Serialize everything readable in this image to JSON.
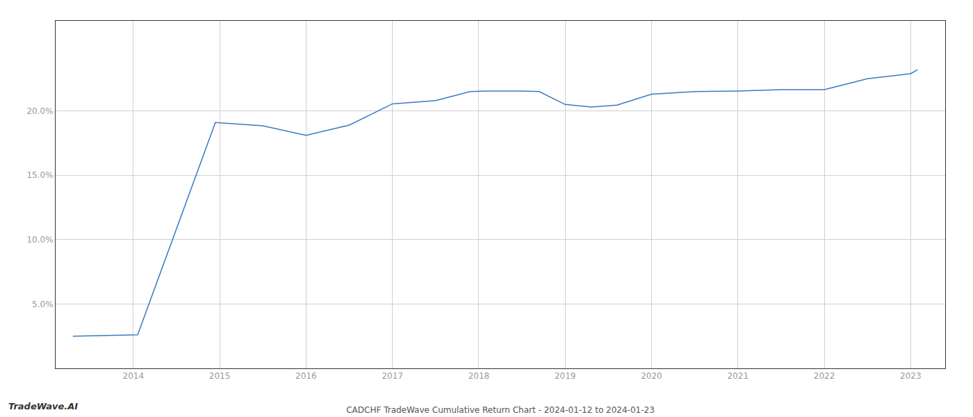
{
  "chart_data": {
    "type": "line",
    "title": "CADCHF TradeWave Cumulative Return Chart - 2024-01-12 to 2024-01-23",
    "annotations": [
      {
        "text": "TradeWave.AI"
      }
    ],
    "x": [
      2013.3,
      2013.95,
      2014.05,
      2014.95,
      2015.5,
      2016.0,
      2016.5,
      2017.0,
      2017.5,
      2017.9,
      2018.1,
      2018.5,
      2018.7,
      2019.0,
      2019.3,
      2019.6,
      2020.0,
      2020.5,
      2021.0,
      2021.5,
      2021.8,
      2022.0,
      2022.5,
      2023.0,
      2023.08
    ],
    "values": [
      2.5,
      2.6,
      2.6,
      19.1,
      18.85,
      18.1,
      18.9,
      20.55,
      20.8,
      21.5,
      21.55,
      21.55,
      21.5,
      20.5,
      20.3,
      20.45,
      21.3,
      21.5,
      21.55,
      21.65,
      21.65,
      21.65,
      22.5,
      22.9,
      23.2
    ],
    "color": "#3a7abf",
    "xlim": [
      2013.1,
      2023.4
    ],
    "ylim": [
      0.0,
      27.0
    ],
    "xticks": [
      2014,
      2015,
      2016,
      2017,
      2018,
      2019,
      2020,
      2021,
      2022,
      2023
    ],
    "yticks": [
      {
        "value": 5.0,
        "label": "5.0%"
      },
      {
        "value": 10.0,
        "label": "10.0%"
      },
      {
        "value": 15.0,
        "label": "15.0%"
      },
      {
        "value": 20.0,
        "label": "20.0%"
      }
    ],
    "grid": true
  }
}
